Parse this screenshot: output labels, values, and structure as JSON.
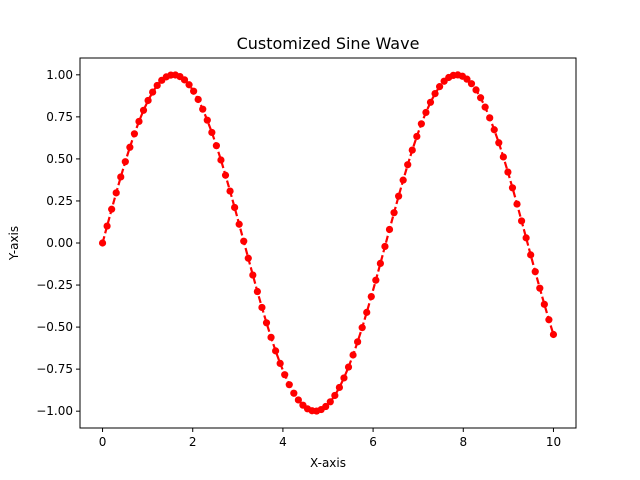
{
  "chart_data": {
    "type": "line",
    "title": "Customized Sine Wave",
    "xlabel": "X-axis",
    "ylabel": "Y-axis",
    "xlim": [
      -0.5,
      10.5
    ],
    "ylim": [
      -1.1,
      1.1
    ],
    "x_ticks": [
      0,
      2,
      4,
      6,
      8,
      10
    ],
    "x_tick_labels": [
      "0",
      "2",
      "4",
      "6",
      "8",
      "10"
    ],
    "y_ticks": [
      -1.0,
      -0.75,
      -0.5,
      -0.25,
      0.0,
      0.25,
      0.5,
      0.75,
      1.0
    ],
    "y_tick_labels": [
      "−1.00",
      "−0.75",
      "−0.50",
      "−0.25",
      "0.00",
      "0.25",
      "0.50",
      "0.75",
      "1.00"
    ],
    "grid": false,
    "series": [
      {
        "color": "#ff0000",
        "linestyle": "dashed",
        "marker": "circle",
        "x": [
          0.0,
          0.101,
          0.202,
          0.303,
          0.404,
          0.505,
          0.606,
          0.707,
          0.808,
          0.909,
          1.01,
          1.111,
          1.212,
          1.313,
          1.414,
          1.515,
          1.616,
          1.717,
          1.818,
          1.919,
          2.02,
          2.121,
          2.222,
          2.323,
          2.424,
          2.525,
          2.626,
          2.727,
          2.828,
          2.929,
          3.03,
          3.131,
          3.232,
          3.333,
          3.434,
          3.535,
          3.636,
          3.737,
          3.838,
          3.939,
          4.04,
          4.141,
          4.242,
          4.343,
          4.444,
          4.545,
          4.646,
          4.747,
          4.848,
          4.949,
          5.051,
          5.152,
          5.253,
          5.354,
          5.455,
          5.556,
          5.657,
          5.758,
          5.859,
          5.96,
          6.061,
          6.162,
          6.263,
          6.364,
          6.465,
          6.566,
          6.667,
          6.768,
          6.869,
          6.97,
          7.071,
          7.172,
          7.273,
          7.374,
          7.475,
          7.576,
          7.677,
          7.778,
          7.879,
          7.98,
          8.081,
          8.182,
          8.283,
          8.384,
          8.485,
          8.586,
          8.687,
          8.788,
          8.889,
          8.99,
          9.091,
          9.192,
          9.293,
          9.394,
          9.495,
          9.596,
          9.697,
          9.798,
          9.899,
          10.0
        ],
        "y": [
          0.0,
          0.1008,
          0.2006,
          0.2982,
          0.3928,
          0.4834,
          0.5692,
          0.6493,
          0.7228,
          0.7891,
          0.8475,
          0.8973,
          0.9369,
          0.9673,
          0.9878,
          0.9983,
          0.9989,
          0.9894,
          0.9701,
          0.9409,
          0.9025,
          0.8534,
          0.7956,
          0.7302,
          0.6575,
          0.5786,
          0.4935,
          0.4028,
          0.3087,
          0.2112,
          0.1115,
          0.0105,
          -0.0907,
          -0.1905,
          -0.2885,
          -0.3832,
          -0.4744,
          -0.5608,
          -0.6415,
          -0.7159,
          -0.7831,
          -0.8424,
          -0.8932,
          -0.9332,
          -0.9644,
          -0.9858,
          -0.9973,
          -0.9992,
          -0.9905,
          -0.9723,
          -0.9443,
          -0.9066,
          -0.8589,
          -0.8022,
          -0.7376,
          -0.6659,
          -0.5876,
          -0.5031,
          -0.4126,
          -0.3187,
          -0.2213,
          -0.1213,
          -0.0206,
          0.0806,
          0.1803,
          0.2784,
          0.3738,
          0.4654,
          0.5524,
          0.6337,
          0.7087,
          0.7764,
          0.8366,
          0.8883,
          0.9297,
          0.9619,
          0.9841,
          0.9965,
          0.9995,
          0.9916,
          0.9742,
          0.9472,
          0.9103,
          0.8637,
          0.8079,
          0.7442,
          0.6733,
          0.5959,
          0.5117,
          0.4218,
          0.3282,
          0.2314,
          0.1312,
          0.0305,
          -0.0706,
          -0.1708,
          -0.2688,
          -0.3646,
          -0.4564,
          -0.544
        ]
      }
    ]
  }
}
